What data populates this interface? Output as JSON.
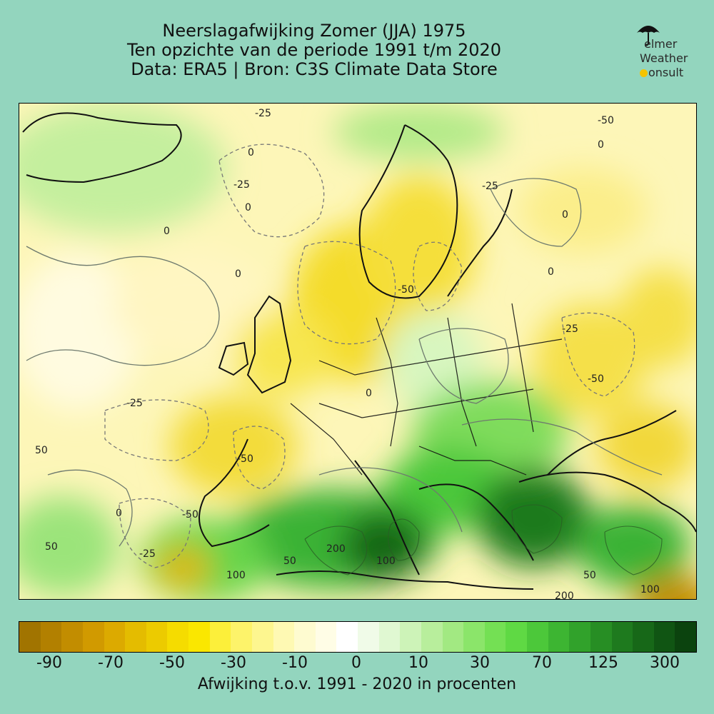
{
  "title": {
    "line1": "Neerslagafwijking Zomer (JJA) 1975",
    "line2": "Ten opzichte van de periode 1991 t/m 2020",
    "line3": "Data: ERA5 | Bron: C3S Climate Data Store"
  },
  "logo": {
    "line1": "Jelmer",
    "line2": "Weather",
    "line3": "Consult",
    "line1_text": "elmer",
    "line3_text": "onsult"
  },
  "colorbar": {
    "label": "Afwijking t.o.v. 1991 - 2020 in procenten",
    "ticks": [
      "-90",
      "-70",
      "-50",
      "-30",
      "-10",
      "0",
      "10",
      "30",
      "70",
      "125",
      "300"
    ],
    "colors": [
      "#a17400",
      "#b28000",
      "#c28d00",
      "#d19a00",
      "#dcaa00",
      "#e4bc00",
      "#eccb00",
      "#f5dc00",
      "#fae700",
      "#fcef3a",
      "#fdf36a",
      "#fdf68f",
      "#fef9b3",
      "#fefbd0",
      "#fffde6",
      "#ffffff",
      "#f0fbe8",
      "#e0f8d2",
      "#cdf3b8",
      "#b8ee9c",
      "#a2e982",
      "#8be56a",
      "#74e054",
      "#5fd944",
      "#4cc83a",
      "#3db532",
      "#31a22b",
      "#278e24",
      "#1e7a1e",
      "#176818",
      "#105513",
      "#0b430e"
    ]
  },
  "map": {
    "contour_labels": [
      "-25",
      "-25",
      "-25",
      "-25",
      "0",
      "0",
      "0",
      "0",
      "0",
      "0",
      "0",
      "0",
      "-50",
      "-50",
      "-50",
      "-50",
      "-50",
      "-25",
      "-25",
      "-25",
      "-25",
      "0",
      "-25",
      "-25",
      "50",
      "50",
      "50",
      "0",
      "-25",
      "-50",
      "0",
      "50",
      "100",
      "200",
      "100",
      "50",
      "200",
      "100",
      "50",
      "200",
      "100"
    ]
  },
  "colors": {
    "background": "#93d5be",
    "contour": "#6e7a6e"
  }
}
